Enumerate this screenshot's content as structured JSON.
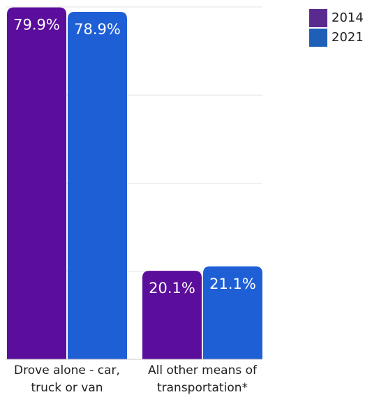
{
  "chart_data": {
    "type": "bar",
    "categories": [
      [
        "Drove alone - car,",
        "truck or van"
      ],
      [
        "All other means of",
        "transportation*"
      ]
    ],
    "series": [
      {
        "name": "2014",
        "color": "#5b0e9b",
        "values": [
          79.9,
          20.1
        ],
        "labels": [
          "79.9%",
          "20.1%"
        ]
      },
      {
        "name": "2021",
        "color": "#1f5fd6",
        "values": [
          78.9,
          21.1
        ],
        "labels": [
          "78.9%",
          "21.1%"
        ]
      }
    ],
    "ylim": [
      0,
      80
    ],
    "grid": true,
    "legend_position": "top-right"
  },
  "legend": {
    "items": [
      {
        "label": "2014",
        "color": "#5b2a8f"
      },
      {
        "label": "2021",
        "color": "#1f5fb8"
      }
    ]
  }
}
